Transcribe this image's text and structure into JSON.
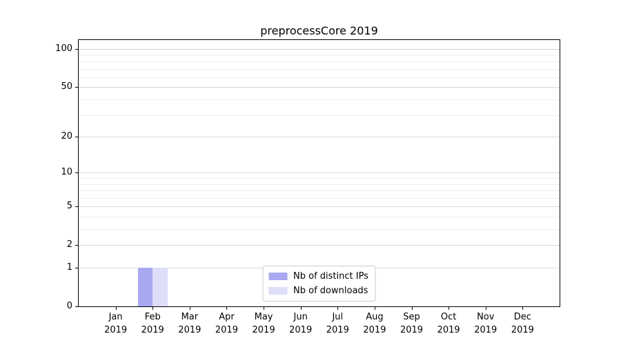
{
  "chart_data": {
    "type": "bar",
    "title": "preprocessCore 2019",
    "xlabel": "",
    "ylabel": "",
    "x_tick_labels": [
      [
        "Jan",
        "2019"
      ],
      [
        "Feb",
        "2019"
      ],
      [
        "Mar",
        "2019"
      ],
      [
        "Apr",
        "2019"
      ],
      [
        "May",
        "2019"
      ],
      [
        "Jun",
        "2019"
      ],
      [
        "Jul",
        "2019"
      ],
      [
        "Aug",
        "2019"
      ],
      [
        "Sep",
        "2019"
      ],
      [
        "Oct",
        "2019"
      ],
      [
        "Nov",
        "2019"
      ],
      [
        "Dec",
        "2019"
      ]
    ],
    "series": [
      {
        "name": "Nb of distinct IPs",
        "color": "#a9a9f1",
        "values": [
          0,
          1,
          0,
          0,
          0,
          0,
          0,
          0,
          0,
          0,
          0,
          0
        ]
      },
      {
        "name": "Nb of downloads",
        "color": "#dedef9",
        "values": [
          0,
          1,
          0,
          0,
          0,
          0,
          0,
          0,
          0,
          0,
          0,
          0
        ]
      }
    ],
    "y_axis": {
      "scale": "log1p",
      "ticks": [
        0,
        1,
        2,
        5,
        10,
        20,
        50,
        100
      ],
      "minor_gridlines": [
        3,
        4,
        6,
        7,
        8,
        9,
        30,
        40,
        60,
        70,
        80,
        90
      ],
      "max": 118
    },
    "grid": "on",
    "legend_position": "lower center"
  },
  "colors": {
    "major_grid": "#d6d6d6",
    "minor_grid": "#ededed",
    "spine": "#000000"
  }
}
